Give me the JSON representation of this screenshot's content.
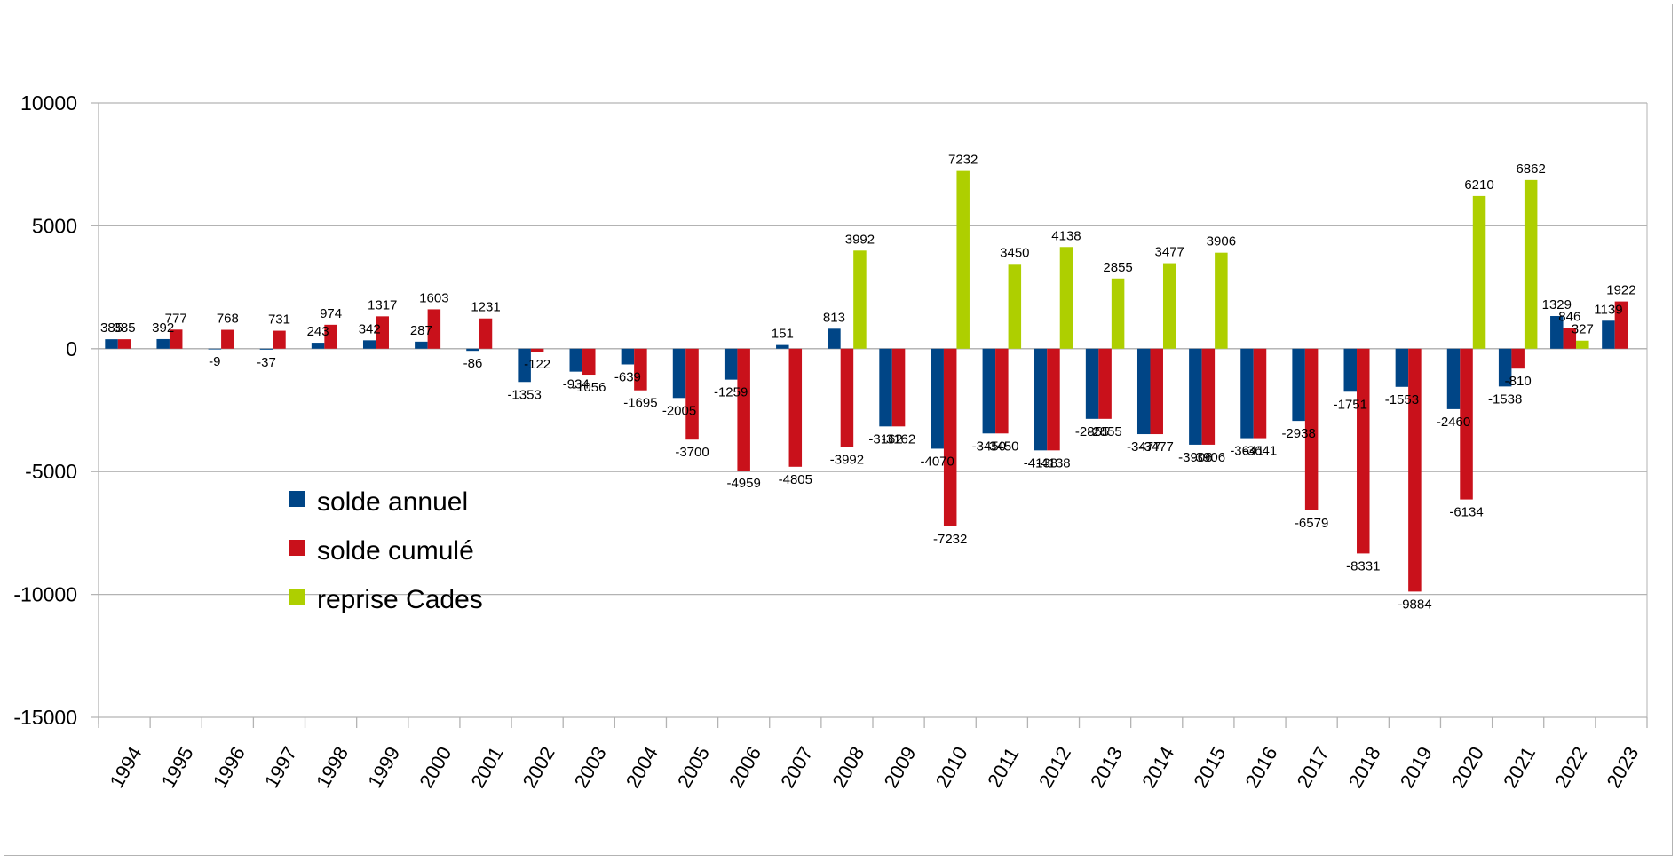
{
  "chart_data": {
    "type": "bar",
    "title": "",
    "xlabel": "",
    "ylabel": "",
    "ylim": [
      -15000,
      10000
    ],
    "yticks": [
      10000,
      5000,
      0,
      -5000,
      -10000,
      -15000
    ],
    "grid": true,
    "legend_position": "lower-left inside plot",
    "categories": [
      "1994",
      "1995",
      "1996",
      "1997",
      "1998",
      "1999",
      "2000",
      "2001",
      "2002",
      "2003",
      "2004",
      "2005",
      "2006",
      "2007",
      "2008",
      "2009",
      "2010",
      "2011",
      "2012",
      "2013",
      "2014",
      "2015",
      "2016",
      "2017",
      "2018",
      "2019",
      "2020",
      "2021",
      "2022",
      "2023"
    ],
    "series": [
      {
        "name": "solde annuel",
        "color": "#004586",
        "values": [
          385,
          392,
          -9,
          -37,
          243,
          342,
          287,
          -86,
          -1353,
          -934,
          -639,
          -2005,
          -1259,
          151,
          813,
          -3162,
          -4070,
          -3450,
          -4138,
          -2855,
          -3477,
          -3906,
          -3641,
          -2938,
          -1751,
          -1553,
          -2460,
          -1538,
          1329,
          1139
        ]
      },
      {
        "name": "solde cumulé",
        "color": "#c9111b",
        "values": [
          385,
          777,
          768,
          731,
          974,
          1317,
          1603,
          1231,
          -122,
          -1056,
          -1695,
          -3700,
          -4959,
          -4805,
          -3992,
          -3162,
          -7232,
          -3450,
          -4138,
          -2855,
          -3477,
          -3906,
          -3641,
          -6579,
          -8331,
          -9884,
          -6134,
          -810,
          846,
          1922
        ]
      },
      {
        "name": "reprise Cades",
        "color": "#aecf00",
        "values": [
          null,
          null,
          null,
          null,
          null,
          null,
          null,
          null,
          null,
          null,
          null,
          null,
          null,
          null,
          3992,
          null,
          7232,
          3450,
          4138,
          2855,
          3477,
          3906,
          null,
          null,
          null,
          null,
          6210,
          6862,
          327,
          null
        ]
      }
    ]
  }
}
